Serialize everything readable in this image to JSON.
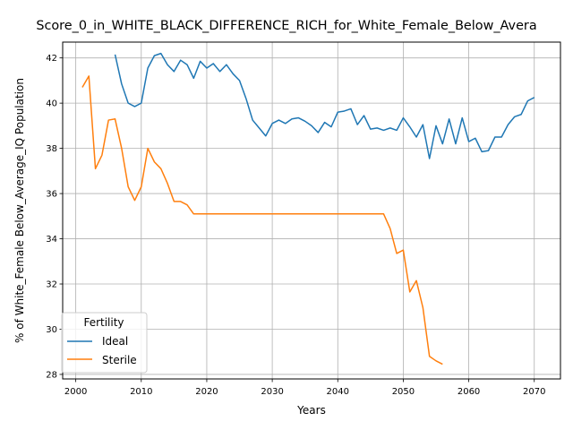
{
  "chart_data": {
    "type": "line",
    "title": "Score_0_in_WHITE_BLACK_DIFFERENCE_RICH_for_White_Female_Below_Avera",
    "xlabel": "Years",
    "ylabel": "% of White_Female Below_Average_IQ Population",
    "xlim": [
      1998,
      2074
    ],
    "ylim": [
      27.8,
      42.7
    ],
    "xticks": [
      2000,
      2010,
      2020,
      2030,
      2040,
      2050,
      2060,
      2070
    ],
    "yticks": [
      28,
      30,
      32,
      34,
      36,
      38,
      40,
      42
    ],
    "grid": true,
    "legend": {
      "title": "Fertility",
      "position": "lower-left"
    },
    "series": [
      {
        "name": "Ideal",
        "color": "#1f77b4",
        "x": [
          2006,
          2007,
          2008,
          2009,
          2010,
          2011,
          2012,
          2013,
          2014,
          2015,
          2016,
          2017,
          2018,
          2019,
          2020,
          2021,
          2022,
          2023,
          2024,
          2025,
          2026,
          2027,
          2028,
          2029,
          2030,
          2031,
          2032,
          2033,
          2034,
          2035,
          2036,
          2037,
          2038,
          2039,
          2040,
          2041,
          2042,
          2043,
          2044,
          2045,
          2046,
          2047,
          2048,
          2049,
          2050,
          2051,
          2052,
          2053,
          2054,
          2055,
          2056,
          2057,
          2058,
          2059,
          2060,
          2061,
          2062,
          2063,
          2064,
          2065,
          2066,
          2067,
          2068,
          2069,
          2070
        ],
        "y": [
          42.15,
          40.85,
          40.0,
          39.85,
          40.0,
          41.55,
          42.1,
          42.2,
          41.7,
          41.4,
          41.9,
          41.7,
          41.1,
          41.85,
          41.55,
          41.75,
          41.4,
          41.7,
          41.3,
          41.0,
          40.2,
          39.25,
          38.9,
          38.55,
          39.1,
          39.25,
          39.1,
          39.3,
          39.35,
          39.2,
          39.0,
          38.7,
          39.15,
          38.95,
          39.6,
          39.65,
          39.75,
          39.05,
          39.45,
          38.85,
          38.9,
          38.8,
          38.9,
          38.8,
          39.35,
          38.95,
          38.5,
          39.05,
          37.55,
          39.0,
          38.2,
          39.3,
          38.2,
          39.35,
          38.3,
          38.45,
          37.85,
          37.9,
          38.5,
          38.5,
          39.05,
          39.4,
          39.5,
          40.1,
          40.25
        ]
      },
      {
        "name": "Sterile",
        "color": "#ff7f0e",
        "x": [
          2001,
          2002,
          2003,
          2004,
          2005,
          2006,
          2007,
          2008,
          2009,
          2010,
          2011,
          2012,
          2013,
          2014,
          2015,
          2016,
          2017,
          2018,
          2019,
          2020,
          2021,
          2022,
          2023,
          2024,
          2025,
          2026,
          2027,
          2028,
          2029,
          2030,
          2031,
          2032,
          2033,
          2034,
          2035,
          2036,
          2037,
          2038,
          2039,
          2040,
          2041,
          2042,
          2043,
          2044,
          2045,
          2046,
          2047,
          2048,
          2049,
          2050,
          2051,
          2052,
          2053,
          2054,
          2055,
          2056
        ],
        "y": [
          40.7,
          41.2,
          37.1,
          37.7,
          39.25,
          39.3,
          38.0,
          36.3,
          35.7,
          36.3,
          38.0,
          37.4,
          37.1,
          36.45,
          35.65,
          35.65,
          35.5,
          35.1,
          35.1,
          35.1,
          35.1,
          35.1,
          35.1,
          35.1,
          35.1,
          35.1,
          35.1,
          35.1,
          35.1,
          35.1,
          35.1,
          35.1,
          35.1,
          35.1,
          35.1,
          35.1,
          35.1,
          35.1,
          35.1,
          35.1,
          35.1,
          35.1,
          35.1,
          35.1,
          35.1,
          35.1,
          35.1,
          34.45,
          33.35,
          33.5,
          31.65,
          32.15,
          30.95,
          28.8,
          28.6,
          28.45
        ]
      }
    ]
  }
}
